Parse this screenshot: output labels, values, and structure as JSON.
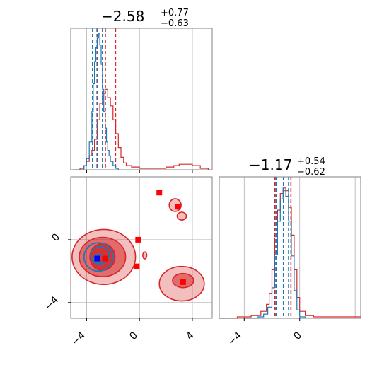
{
  "colors": {
    "red": "#d62728",
    "blue": "#1f77b4",
    "marker_red": "#ff0000",
    "marker_blue": "#0000ff",
    "grid": "#b0b0b0",
    "frame": "#808080"
  },
  "chart_data": [
    {
      "type": "histogram",
      "panel": "top-left",
      "title": {
        "value": "−2.58",
        "plus": "+0.77",
        "minus": "−0.63"
      },
      "xlim": [
        -5.2,
        5.5
      ],
      "x_gridlines": [
        -4,
        0,
        4
      ],
      "series": [
        {
          "color": "red",
          "bins": [
            [
              -5.0,
              0.0
            ],
            [
              -4.5,
              0.01
            ],
            [
              -4.2,
              0.03
            ],
            [
              -4.0,
              0.06
            ],
            [
              -3.8,
              0.1
            ],
            [
              -3.6,
              0.14
            ],
            [
              -3.4,
              0.22
            ],
            [
              -3.2,
              0.36
            ],
            [
              -3.0,
              0.48
            ],
            [
              -2.8,
              0.55
            ],
            [
              -2.6,
              0.58
            ],
            [
              -2.4,
              0.52
            ],
            [
              -2.2,
              0.46
            ],
            [
              -2.0,
              0.36
            ],
            [
              -1.8,
              0.26
            ],
            [
              -1.6,
              0.16
            ],
            [
              -1.4,
              0.09
            ],
            [
              -1.2,
              0.05
            ],
            [
              -1.0,
              0.03
            ],
            [
              -0.6,
              0.02
            ],
            [
              0.0,
              0.01
            ],
            [
              1.0,
              0.01
            ],
            [
              2.0,
              0.02
            ],
            [
              2.6,
              0.03
            ],
            [
              3.0,
              0.04
            ],
            [
              3.6,
              0.04
            ],
            [
              4.0,
              0.03
            ],
            [
              4.6,
              0.01
            ],
            [
              5.2,
              0.0
            ]
          ],
          "quantiles": [
            -3.21,
            -2.58,
            -1.81
          ]
        },
        {
          "color": "blue",
          "bins": [
            [
              -4.6,
              0.0
            ],
            [
              -4.2,
              0.03
            ],
            [
              -4.0,
              0.08
            ],
            [
              -3.8,
              0.2
            ],
            [
              -3.6,
              0.42
            ],
            [
              -3.5,
              0.62
            ],
            [
              -3.4,
              0.78
            ],
            [
              -3.3,
              0.88
            ],
            [
              -3.2,
              0.95
            ],
            [
              -3.1,
              0.98
            ],
            [
              -3.0,
              0.9
            ],
            [
              -2.9,
              0.76
            ],
            [
              -2.8,
              0.58
            ],
            [
              -2.7,
              0.42
            ],
            [
              -2.6,
              0.3
            ],
            [
              -2.5,
              0.2
            ],
            [
              -2.4,
              0.14
            ],
            [
              -2.3,
              0.1
            ],
            [
              -2.2,
              0.06
            ],
            [
              -2.0,
              0.03
            ],
            [
              -1.8,
              0.01
            ],
            [
              -1.6,
              0.0
            ]
          ],
          "quantiles": [
            -3.55,
            -3.18,
            -2.8
          ]
        }
      ]
    },
    {
      "type": "contour",
      "panel": "bottom-left",
      "xlim": [
        -5.2,
        5.5
      ],
      "ylim": [
        -5.0,
        4.0
      ],
      "x_ticks": [
        "−4",
        "0",
        "4"
      ],
      "y_ticks": [
        "0",
        "−4"
      ],
      "x_tick_values": [
        -4,
        0,
        4
      ],
      "y_tick_values": [
        0,
        -4
      ],
      "red_points": [
        [
          1.5,
          3.0
        ],
        [
          2.9,
          2.1
        ],
        [
          -0.1,
          0.0
        ],
        [
          -0.2,
          -1.7
        ],
        [
          -2.6,
          -1.2
        ],
        [
          3.3,
          -2.7
        ]
      ],
      "blue_points": [
        [
          -3.2,
          -1.2
        ]
      ],
      "red_contours": [
        {
          "cx": -2.7,
          "cy": -1.1,
          "rx": 2.4,
          "ry": 1.75
        },
        {
          "cx": -2.8,
          "cy": -1.1,
          "rx": 1.75,
          "ry": 1.25
        },
        {
          "cx": -2.8,
          "cy": -1.1,
          "rx": 0.95,
          "ry": 0.85
        },
        {
          "cx": 3.2,
          "cy": -2.8,
          "rx": 1.7,
          "ry": 1.1
        },
        {
          "cx": 3.3,
          "cy": -2.6,
          "rx": 0.8,
          "ry": 0.45
        },
        {
          "cx": 2.7,
          "cy": 2.2,
          "rx": 0.45,
          "ry": 0.4
        },
        {
          "cx": 3.2,
          "cy": 1.5,
          "rx": 0.35,
          "ry": 0.25
        },
        {
          "cx": 0.4,
          "cy": -1.0,
          "rx": 0.15,
          "ry": 0.22
        }
      ],
      "blue_contours": [
        {
          "cx": -3.1,
          "cy": -1.1,
          "rx": 1.1,
          "ry": 0.9
        },
        {
          "cx": -3.0,
          "cy": -1.0,
          "rx": 0.7,
          "ry": 0.55
        },
        {
          "cx": -3.1,
          "cy": -1.2,
          "rx": 0.35,
          "ry": 0.3
        }
      ]
    },
    {
      "type": "histogram",
      "panel": "bottom-right",
      "title": {
        "value": "−1.17",
        "plus": "+0.54",
        "minus": "−0.62"
      },
      "xlim": [
        -5.8,
        4.4
      ],
      "x_ticks": [
        "−4",
        "0"
      ],
      "x_tick_values": [
        -4,
        0
      ],
      "x_gridlines": [
        -4,
        0,
        4
      ],
      "series": [
        {
          "color": "red",
          "bins": [
            [
              -5.8,
              0.0
            ],
            [
              -4.5,
              0.01
            ],
            [
              -3.5,
              0.02
            ],
            [
              -2.8,
              0.05
            ],
            [
              -2.4,
              0.1
            ],
            [
              -2.2,
              0.18
            ],
            [
              -2.0,
              0.35
            ],
            [
              -1.8,
              0.58
            ],
            [
              -1.6,
              0.78
            ],
            [
              -1.4,
              0.9
            ],
            [
              -1.2,
              0.94
            ],
            [
              -1.0,
              0.92
            ],
            [
              -0.8,
              0.8
            ],
            [
              -0.6,
              0.6
            ],
            [
              -0.4,
              0.35
            ],
            [
              -0.2,
              0.15
            ],
            [
              0.0,
              0.05
            ],
            [
              0.4,
              0.02
            ],
            [
              1.0,
              0.01
            ],
            [
              3.0,
              0.01
            ],
            [
              4.4,
              0.0
            ]
          ],
          "quantiles": [
            -1.79,
            -1.17,
            -0.63
          ]
        },
        {
          "color": "blue",
          "bins": [
            [
              -4.0,
              0.0
            ],
            [
              -3.0,
              0.01
            ],
            [
              -2.6,
              0.03
            ],
            [
              -2.3,
              0.08
            ],
            [
              -2.0,
              0.22
            ],
            [
              -1.8,
              0.46
            ],
            [
              -1.6,
              0.7
            ],
            [
              -1.4,
              0.86
            ],
            [
              -1.2,
              0.92
            ],
            [
              -1.0,
              0.88
            ],
            [
              -0.8,
              0.7
            ],
            [
              -0.6,
              0.45
            ],
            [
              -0.4,
              0.2
            ],
            [
              -0.2,
              0.06
            ],
            [
              0.0,
              0.01
            ],
            [
              0.4,
              0.0
            ]
          ],
          "quantiles": [
            -1.7,
            -1.17,
            -0.8
          ]
        }
      ]
    }
  ]
}
